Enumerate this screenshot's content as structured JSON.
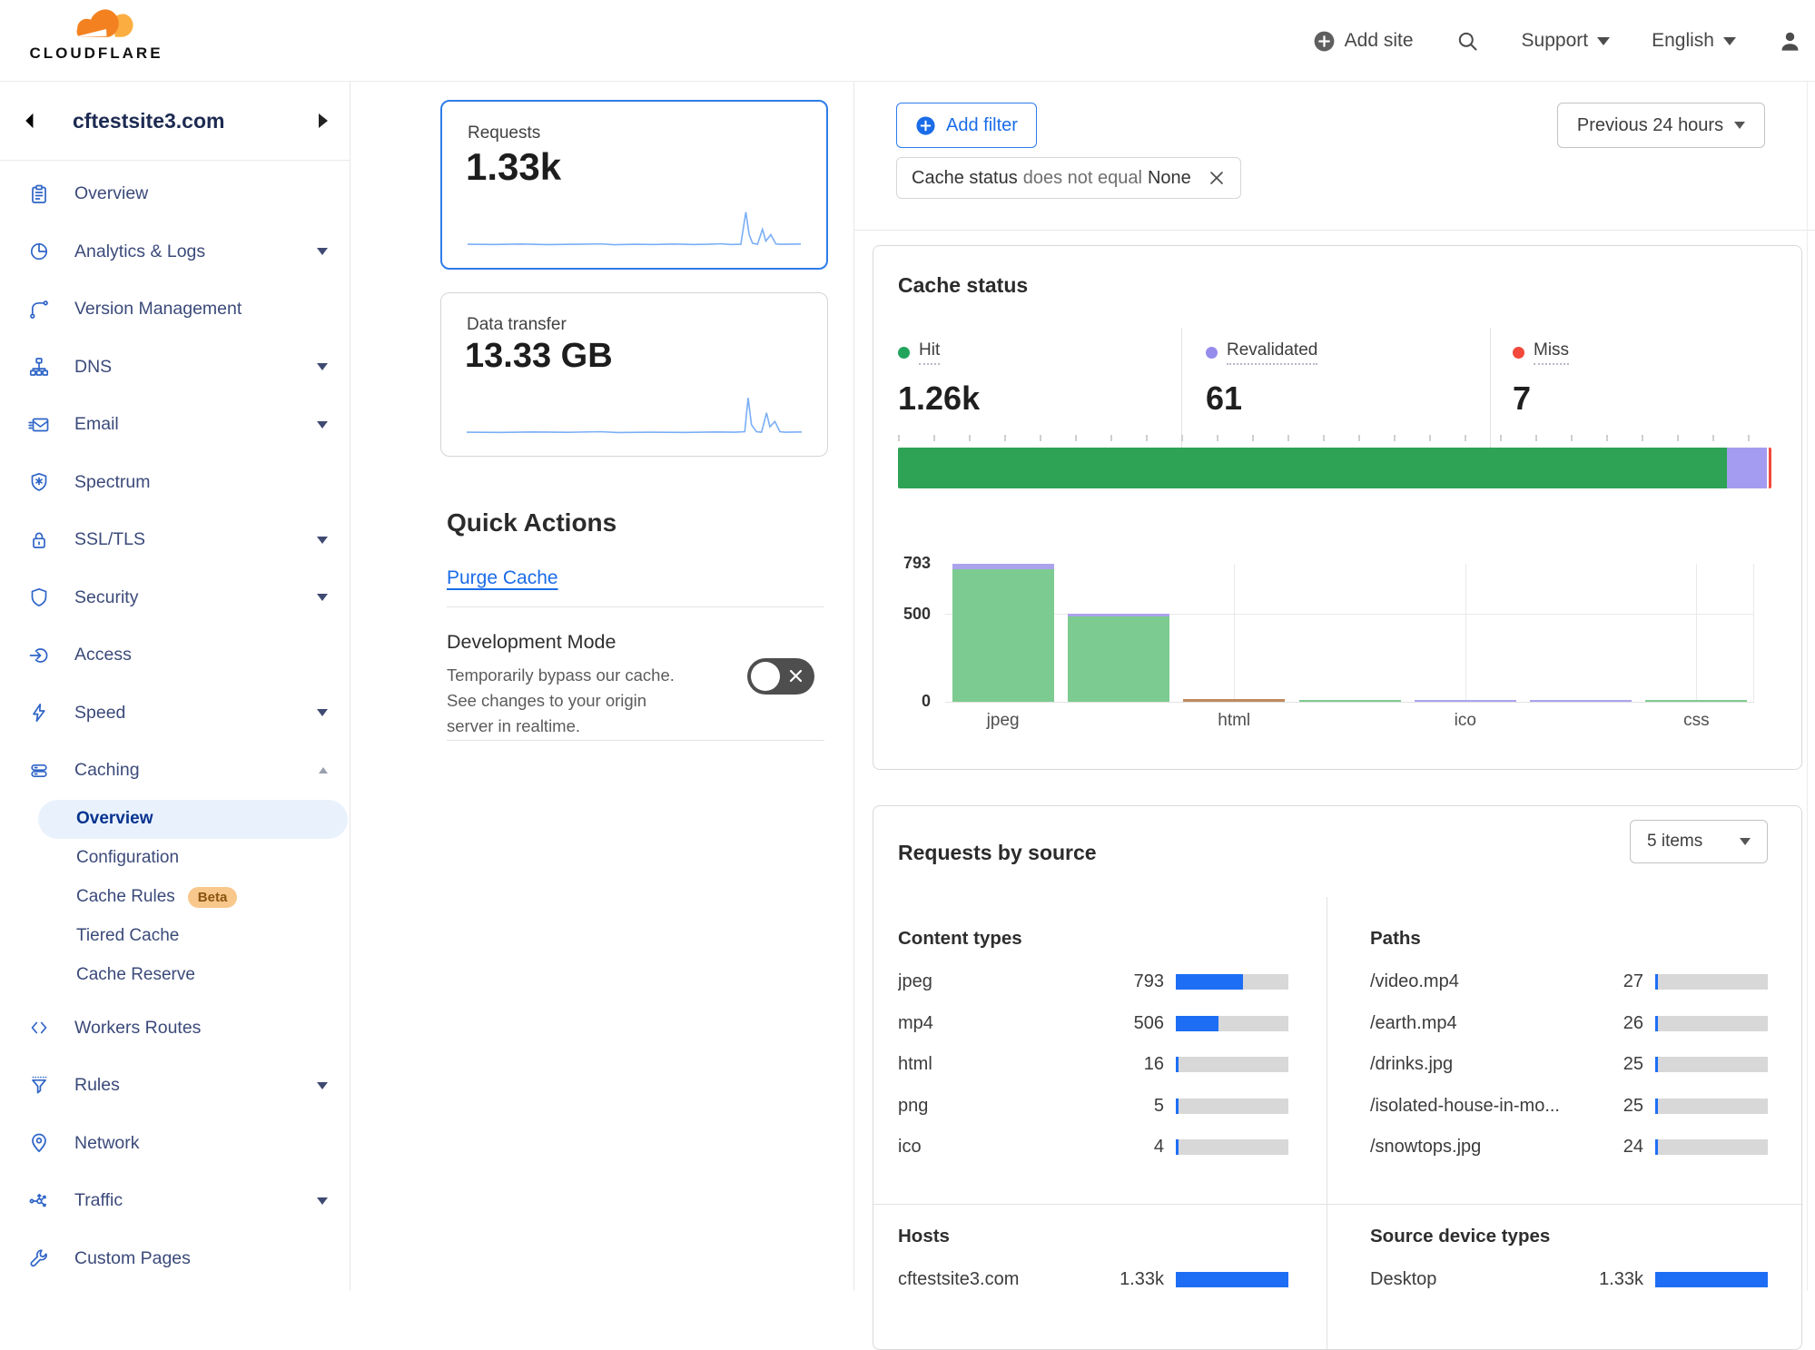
{
  "header": {
    "brand": "CLOUDFLARE",
    "add_site": "Add site",
    "support": "Support",
    "language": "English"
  },
  "sidebar": {
    "site": "cftestsite3.com",
    "items": [
      {
        "label": "Overview"
      },
      {
        "label": "Analytics & Logs"
      },
      {
        "label": "Version Management"
      },
      {
        "label": "DNS"
      },
      {
        "label": "Email"
      },
      {
        "label": "Spectrum"
      },
      {
        "label": "SSL/TLS"
      },
      {
        "label": "Security"
      },
      {
        "label": "Access"
      },
      {
        "label": "Speed"
      },
      {
        "label": "Caching"
      },
      {
        "label": "Workers Routes"
      },
      {
        "label": "Rules"
      },
      {
        "label": "Network"
      },
      {
        "label": "Traffic"
      },
      {
        "label": "Custom Pages"
      }
    ],
    "caching_children": [
      {
        "label": "Overview",
        "active": true
      },
      {
        "label": "Configuration"
      },
      {
        "label": "Cache Rules",
        "badge": "Beta"
      },
      {
        "label": "Tiered Cache"
      },
      {
        "label": "Cache Reserve"
      }
    ]
  },
  "middle": {
    "requests_card": {
      "label": "Requests",
      "value": "1.33k",
      "sparkline": [
        [
          0,
          39
        ],
        [
          8,
          39.2
        ],
        [
          16,
          38.8
        ],
        [
          24,
          39.3
        ],
        [
          32,
          39
        ],
        [
          40,
          38.6
        ],
        [
          44,
          39.4
        ],
        [
          50,
          39
        ],
        [
          56,
          39.2
        ],
        [
          62,
          38.8
        ],
        [
          68,
          39.2
        ],
        [
          72,
          39
        ],
        [
          76,
          38.5
        ],
        [
          79,
          39.2
        ],
        [
          82,
          39
        ],
        [
          83.5,
          9
        ],
        [
          84.5,
          30
        ],
        [
          85.5,
          38
        ],
        [
          87,
          39
        ],
        [
          88.5,
          25
        ],
        [
          89.5,
          36
        ],
        [
          91,
          30
        ],
        [
          92.5,
          38.6
        ],
        [
          94,
          39
        ],
        [
          100,
          38.8
        ]
      ]
    },
    "data_transfer_card": {
      "label": "Data transfer",
      "value": "13.33 GB",
      "sparkline": [
        [
          0,
          39
        ],
        [
          10,
          39.2
        ],
        [
          20,
          38.8
        ],
        [
          30,
          39.1
        ],
        [
          40,
          38.5
        ],
        [
          45,
          39.3
        ],
        [
          55,
          39
        ],
        [
          65,
          39.2
        ],
        [
          75,
          38.8
        ],
        [
          80,
          39
        ],
        [
          83,
          38.5
        ],
        [
          84,
          7
        ],
        [
          85,
          32
        ],
        [
          86.5,
          38.5
        ],
        [
          88,
          39
        ],
        [
          89.5,
          21
        ],
        [
          90.5,
          34
        ],
        [
          92,
          29
        ],
        [
          93.5,
          38.5
        ],
        [
          95,
          39
        ],
        [
          100,
          38.8
        ]
      ]
    },
    "quick_actions_title": "Quick Actions",
    "purge_cache_label": "Purge Cache",
    "dev_mode": {
      "title": "Development Mode",
      "description": "Temporarily bypass our cache. See changes to your origin server in realtime.",
      "state": "off"
    }
  },
  "filters": {
    "add_filter": "Add filter",
    "chip": {
      "field": "Cache status",
      "operator": "does not equal",
      "value": "None"
    },
    "time_range": "Previous 24 hours"
  },
  "cache_status": {
    "title": "Cache status",
    "stats": [
      {
        "label": "Hit",
        "value": "1.26k",
        "dot": "#23a45c"
      },
      {
        "label": "Revalidated",
        "value": "61",
        "dot": "#958cec"
      },
      {
        "label": "Miss",
        "value": "7",
        "dot": "#f2493c"
      }
    ]
  },
  "requests_by_source": {
    "title": "Requests by source",
    "items_dropdown": "5 items",
    "content_types": {
      "title": "Content types",
      "rows": [
        {
          "label": "jpeg",
          "value": "793",
          "fill": 0.598
        },
        {
          "label": "mp4",
          "value": "506",
          "fill": 0.382
        },
        {
          "label": "html",
          "value": "16",
          "fill": 0.012
        },
        {
          "label": "png",
          "value": "5",
          "fill": 0.004
        },
        {
          "label": "ico",
          "value": "4",
          "fill": 0.003
        }
      ]
    },
    "paths": {
      "title": "Paths",
      "rows": [
        {
          "label": "/video.mp4",
          "value": "27",
          "fill": 0.02
        },
        {
          "label": "/earth.mp4",
          "value": "26",
          "fill": 0.02
        },
        {
          "label": "/drinks.jpg",
          "value": "25",
          "fill": 0.019
        },
        {
          "label": "/isolated-house-in-mo...",
          "value": "25",
          "fill": 0.019
        },
        {
          "label": "/snowtops.jpg",
          "value": "24",
          "fill": 0.018
        }
      ]
    },
    "hosts": {
      "title": "Hosts",
      "rows": [
        {
          "label": "cftestsite3.com",
          "value": "1.33k",
          "fill": 1.0
        }
      ]
    },
    "devices": {
      "title": "Source device types",
      "rows": [
        {
          "label": "Desktop",
          "value": "1.33k",
          "fill": 1.0
        }
      ]
    }
  },
  "chart_data": [
    {
      "name": "cache-status-summary-bar",
      "type": "stacked-bar-horizontal",
      "segments": [
        {
          "label": "Hit",
          "value": 1260,
          "display": "1.26k",
          "pct": 94.86,
          "color": "#2ea355"
        },
        {
          "label": "Revalidated",
          "value": 61,
          "display": "61",
          "pct": 4.61,
          "color": "#a49cf0"
        },
        {
          "label": "Miss",
          "value": 7,
          "display": "7",
          "pct": 0.53,
          "color": "#f2493c"
        }
      ]
    },
    {
      "name": "cache-status-by-content-type",
      "type": "bar",
      "stacked": true,
      "ymax": 793,
      "y_ticks": [
        {
          "label": "793",
          "v": 793
        },
        {
          "label": "500",
          "v": 500
        },
        {
          "label": "0",
          "v": 0
        }
      ],
      "x_tick_labels": [
        "jpeg",
        "html",
        "ico",
        "css"
      ],
      "palette": {
        "green": "#7ccb90",
        "purple": "#aba4ed",
        "brown": "#bf8a5f"
      },
      "bars": [
        {
          "label": "jpeg",
          "segments": [
            {
              "color": "green",
              "value": 763
            },
            {
              "color": "purple",
              "value": 30
            }
          ]
        },
        {
          "label": "",
          "segments": [
            {
              "color": "green",
              "value": 489
            },
            {
              "color": "purple",
              "value": 17
            }
          ]
        },
        {
          "label": "html",
          "segments": [
            {
              "color": "brown",
              "value": 16
            }
          ]
        },
        {
          "label": "",
          "segments": [
            {
              "color": "green",
              "value": 5
            }
          ]
        },
        {
          "label": "ico",
          "segments": [
            {
              "color": "purple",
              "value": 4
            }
          ]
        },
        {
          "label": "",
          "segments": [
            {
              "color": "purple",
              "value": 2
            }
          ]
        },
        {
          "label": "css",
          "segments": [
            {
              "color": "green",
              "value": 1
            }
          ]
        }
      ]
    }
  ]
}
